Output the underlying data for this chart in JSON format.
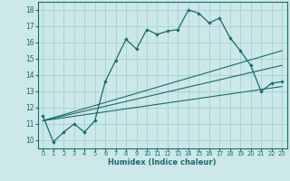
{
  "xlabel": "Humidex (Indice chaleur)",
  "xlim": [
    -0.5,
    23.5
  ],
  "ylim": [
    9.5,
    18.5
  ],
  "xticks": [
    0,
    1,
    2,
    3,
    4,
    5,
    6,
    7,
    8,
    9,
    10,
    11,
    12,
    13,
    14,
    15,
    16,
    17,
    18,
    19,
    20,
    21,
    22,
    23
  ],
  "yticks": [
    10,
    11,
    12,
    13,
    14,
    15,
    16,
    17,
    18
  ],
  "bg_color": "#cce8e8",
  "grid_color": "#aad4d4",
  "line_color": "#1a6b6b",
  "line1_x": [
    0,
    1,
    2,
    3,
    4,
    5,
    6,
    7,
    8,
    9,
    10,
    11,
    12,
    13,
    14,
    15,
    16,
    17,
    18,
    19,
    20,
    21,
    22,
    23
  ],
  "line1_y": [
    11.5,
    9.9,
    10.5,
    11.0,
    10.5,
    11.2,
    13.6,
    14.9,
    16.2,
    15.6,
    16.8,
    16.5,
    16.7,
    16.8,
    18.0,
    17.8,
    17.2,
    17.5,
    16.3,
    15.5,
    14.6,
    13.0,
    13.5,
    13.6
  ],
  "line2_x": [
    0,
    23
  ],
  "line2_y": [
    11.2,
    15.5
  ],
  "line3_x": [
    0,
    23
  ],
  "line3_y": [
    11.2,
    14.6
  ],
  "line4_x": [
    0,
    23
  ],
  "line4_y": [
    11.2,
    13.3
  ]
}
